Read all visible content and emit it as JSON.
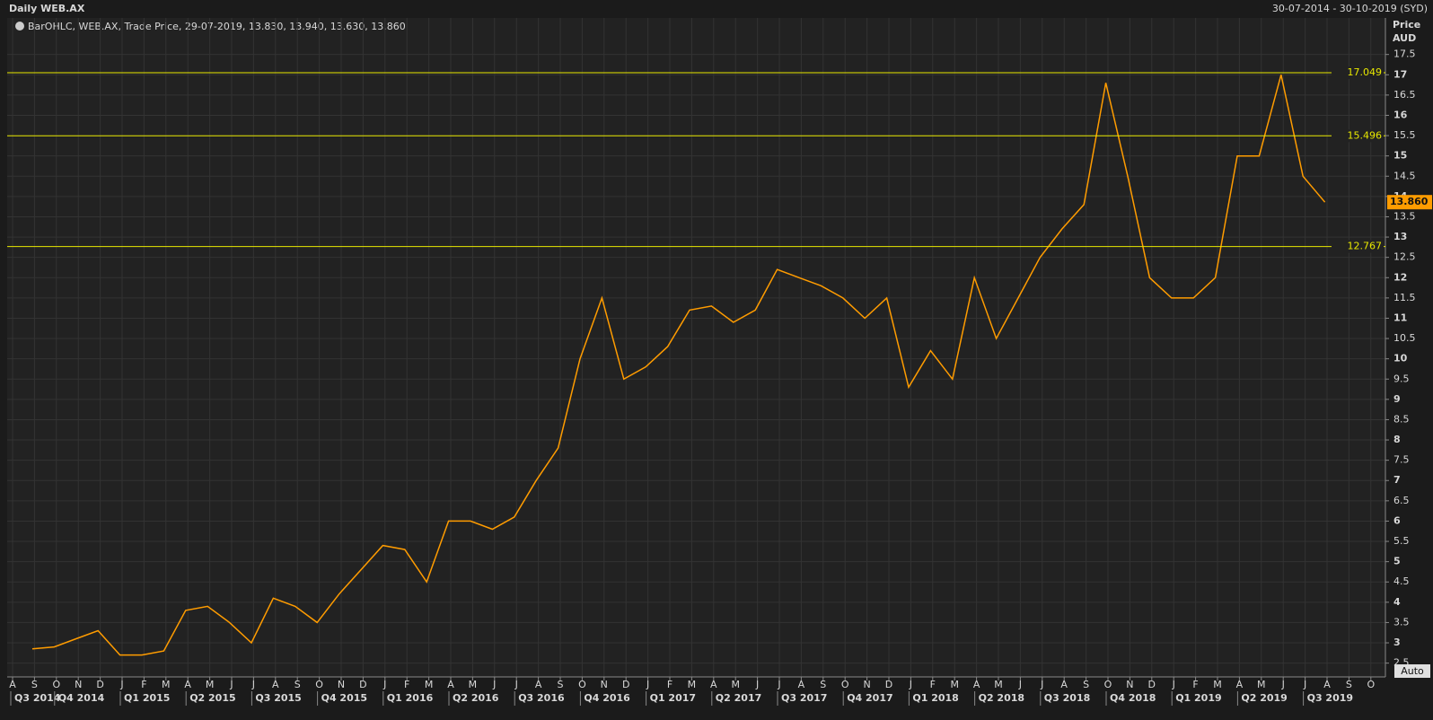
{
  "chart_data": {
    "type": "line",
    "title": "Daily WEB.AX",
    "date_range": "30-07-2014 - 30-10-2019 (SYD)",
    "legend_text": "BarOHLC, WEB.AX, Trade Price, 29-07-2019, 13.830, 13.940, 13.630, 13.860",
    "y_axis_label": "Price",
    "y_axis_unit": "AUD",
    "button": "Auto",
    "color": "#ff9c00",
    "grid": true,
    "ylim": [
      2.16,
      18.4
    ],
    "yticks": [
      2.5,
      3,
      3.5,
      4,
      4.5,
      5,
      5.5,
      6,
      6.5,
      7,
      7.5,
      8,
      8.5,
      9,
      9.5,
      10,
      10.5,
      11,
      11.5,
      12,
      12.5,
      13,
      13.5,
      14,
      14.5,
      15,
      15.5,
      16,
      16.5,
      17,
      17.5
    ],
    "x": [
      "2014-08",
      "2014-09",
      "2014-10",
      "2014-11",
      "2014-12",
      "2015-01",
      "2015-02",
      "2015-03",
      "2015-04",
      "2015-05",
      "2015-06",
      "2015-07",
      "2015-08",
      "2015-09",
      "2015-10",
      "2015-11",
      "2015-12",
      "2016-01",
      "2016-02",
      "2016-03",
      "2016-04",
      "2016-05",
      "2016-06",
      "2016-07",
      "2016-08",
      "2016-09",
      "2016-10",
      "2016-11",
      "2016-12",
      "2017-01",
      "2017-02",
      "2017-03",
      "2017-04",
      "2017-05",
      "2017-06",
      "2017-07",
      "2017-08",
      "2017-09",
      "2017-10",
      "2017-11",
      "2017-12",
      "2018-01",
      "2018-02",
      "2018-03",
      "2018-04",
      "2018-05",
      "2018-06",
      "2018-07",
      "2018-08",
      "2018-09",
      "2018-10",
      "2018-11",
      "2018-12",
      "2019-01",
      "2019-02",
      "2019-03",
      "2019-04",
      "2019-05",
      "2019-06",
      "2019-07"
    ],
    "values": [
      2.85,
      2.9,
      3.1,
      3.3,
      2.7,
      2.7,
      2.8,
      3.8,
      3.9,
      3.5,
      3.0,
      4.1,
      3.9,
      3.5,
      4.2,
      4.8,
      5.4,
      5.3,
      4.5,
      6.0,
      6.0,
      5.8,
      6.1,
      7.0,
      7.8,
      10.0,
      11.5,
      9.5,
      9.8,
      10.3,
      11.2,
      11.3,
      10.9,
      11.2,
      12.2,
      12.0,
      11.8,
      11.5,
      11.0,
      11.5,
      9.3,
      10.2,
      9.5,
      12.0,
      10.5,
      11.5,
      12.5,
      13.2,
      13.8,
      16.8,
      14.5,
      12.0,
      11.5,
      11.5,
      12.0,
      15.0,
      15.0,
      17.0,
      14.5,
      13.86
    ],
    "levels": [
      17.049,
      15.496,
      12.767
    ],
    "level_color": "#e8e800",
    "last_value": {
      "value": 13.86,
      "label": "13.860"
    },
    "months": [
      "A",
      "S",
      "O",
      "N",
      "D",
      "J",
      "F",
      "M",
      "A",
      "M",
      "J",
      "J",
      "A",
      "S",
      "O",
      "N",
      "D",
      "J",
      "F",
      "M",
      "A",
      "M",
      "J",
      "J",
      "A",
      "S",
      "O",
      "N",
      "D",
      "J",
      "F",
      "M",
      "A",
      "M",
      "J",
      "J",
      "A",
      "S",
      "O",
      "N",
      "D",
      "J",
      "F",
      "M",
      "A",
      "M",
      "J",
      "J",
      "A",
      "S",
      "O",
      "N",
      "D",
      "J",
      "F",
      "M",
      "A",
      "M",
      "J",
      "J",
      "A",
      "S",
      "O"
    ],
    "quarters": [
      "Q3 2014",
      "Q4 2014",
      "Q1 2015",
      "Q2 2015",
      "Q3 2015",
      "Q4 2015",
      "Q1 2016",
      "Q2 2016",
      "Q3 2016",
      "Q4 2016",
      "Q1 2017",
      "Q2 2017",
      "Q3 2017",
      "Q4 2017",
      "Q1 2018",
      "Q2 2018",
      "Q3 2018",
      "Q4 2018",
      "Q1 2019",
      "Q2 2019",
      "Q3 2019"
    ]
  }
}
